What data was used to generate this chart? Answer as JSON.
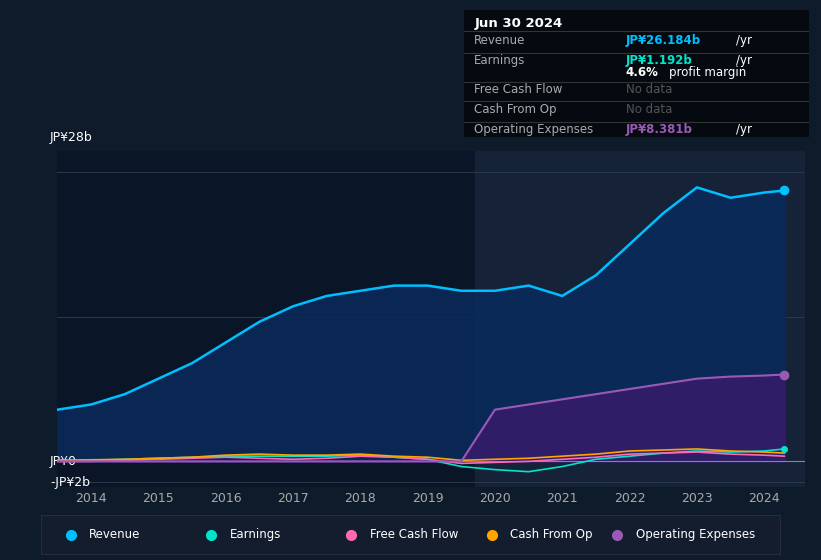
{
  "bg_color": "#0d1b2a",
  "chart_bg_color": "#0a1628",
  "ylabel_28": "JP¥28b",
  "ylabel_0": "JP¥0",
  "ylabel_neg2": "-JP¥2b",
  "x_ticks": [
    2014,
    2015,
    2016,
    2017,
    2018,
    2019,
    2020,
    2021,
    2022,
    2023,
    2024
  ],
  "years": [
    2013.5,
    2014.0,
    2014.5,
    2015.0,
    2015.5,
    2016.0,
    2016.5,
    2017.0,
    2017.5,
    2018.0,
    2018.5,
    2019.0,
    2019.5,
    2020.0,
    2020.5,
    2021.0,
    2021.5,
    2022.0,
    2022.5,
    2023.0,
    2023.5,
    2024.0,
    2024.3
  ],
  "revenue": [
    5.0,
    5.5,
    6.5,
    8.0,
    9.5,
    11.5,
    13.5,
    15.0,
    16.0,
    16.5,
    17.0,
    17.0,
    16.5,
    16.5,
    17.0,
    16.0,
    18.0,
    21.0,
    24.0,
    26.5,
    25.5,
    26.0,
    26.2
  ],
  "earnings": [
    0.1,
    0.1,
    0.2,
    0.3,
    0.4,
    0.5,
    0.5,
    0.5,
    0.5,
    0.6,
    0.4,
    0.2,
    -0.5,
    -0.8,
    -1.0,
    -0.5,
    0.2,
    0.5,
    0.8,
    1.0,
    0.9,
    1.0,
    1.2
  ],
  "free_cash_flow": [
    0.0,
    0.0,
    0.1,
    0.2,
    0.3,
    0.4,
    0.3,
    0.2,
    0.3,
    0.5,
    0.4,
    0.2,
    -0.2,
    -0.1,
    0.0,
    0.2,
    0.4,
    0.7,
    0.8,
    0.9,
    0.7,
    0.6,
    0.5
  ],
  "cash_from_op": [
    0.1,
    0.15,
    0.2,
    0.3,
    0.4,
    0.6,
    0.7,
    0.6,
    0.6,
    0.7,
    0.5,
    0.4,
    0.1,
    0.2,
    0.3,
    0.5,
    0.7,
    1.0,
    1.1,
    1.2,
    1.0,
    0.9,
    0.8
  ],
  "op_expenses": [
    0.0,
    0.0,
    0.0,
    0.0,
    0.0,
    0.0,
    0.0,
    0.0,
    0.0,
    0.0,
    0.0,
    0.0,
    0.0,
    5.0,
    5.5,
    6.0,
    6.5,
    7.0,
    7.5,
    8.0,
    8.2,
    8.3,
    8.4
  ],
  "revenue_color": "#00bfff",
  "earnings_color": "#00e5cc",
  "free_cash_flow_color": "#ff69b4",
  "cash_from_op_color": "#ffa500",
  "op_expenses_color": "#9b59b6",
  "info_box": {
    "date": "Jun 30 2024",
    "revenue_label": "Revenue",
    "revenue_value": "JP¥26.184b",
    "revenue_unit": "/yr",
    "earnings_label": "Earnings",
    "earnings_value": "JP¥1.192b",
    "earnings_unit": "/yr",
    "profit_margin": "4.6%",
    "profit_margin_label": "profit margin",
    "fcf_label": "Free Cash Flow",
    "fcf_value": "No data",
    "cfo_label": "Cash From Op",
    "cfo_value": "No data",
    "opex_label": "Operating Expenses",
    "opex_value": "JP¥8.381b",
    "opex_unit": "/yr"
  },
  "legend_items": [
    "Revenue",
    "Earnings",
    "Free Cash Flow",
    "Cash From Op",
    "Operating Expenses"
  ],
  "legend_colors": [
    "#00bfff",
    "#00e5cc",
    "#ff69b4",
    "#ffa500",
    "#9b59b6"
  ],
  "highlight_start": 2019.7,
  "highlight_end": 2024.6,
  "ylim": [
    -2.5,
    30.0
  ],
  "xlim": [
    2013.5,
    2024.6
  ]
}
